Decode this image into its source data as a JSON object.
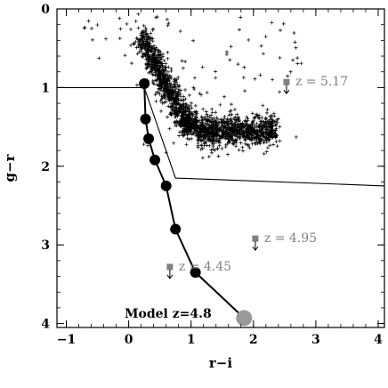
{
  "chart_data": {
    "type": "scatter",
    "title": "",
    "xlabel": "r−i",
    "ylabel": "g−r",
    "xlim": [
      -1.15,
      4.1
    ],
    "ylim": [
      0,
      4.05
    ],
    "y_inverted": true,
    "grid": false,
    "x_ticks": [
      "−1",
      "0",
      "1",
      "2",
      "3",
      "4"
    ],
    "x_tick_values": [
      -1,
      0,
      1,
      2,
      3,
      4
    ],
    "y_ticks": [
      "0",
      "1",
      "2",
      "3",
      "4"
    ],
    "y_tick_values": [
      0,
      1,
      2,
      3,
      4
    ],
    "colors": {
      "points": "#000000",
      "quasar": "#808080",
      "model": "#000000",
      "model_end": "#999999",
      "cut": "#000000"
    },
    "selection_boundary": [
      {
        "x": -1.15,
        "y": 1.0
      },
      {
        "x": 0.25,
        "y": 1.0
      },
      {
        "x": 0.75,
        "y": 2.15
      },
      {
        "x": 4.1,
        "y": 2.25
      }
    ],
    "model_track": {
      "label": "Model z=4.8",
      "points": [
        {
          "x": 0.25,
          "y": 0.95
        },
        {
          "x": 0.27,
          "y": 1.4
        },
        {
          "x": 0.32,
          "y": 1.65
        },
        {
          "x": 0.42,
          "y": 1.92
        },
        {
          "x": 0.6,
          "y": 2.25
        },
        {
          "x": 0.75,
          "y": 2.8
        },
        {
          "x": 1.07,
          "y": 3.35
        },
        {
          "x": 1.85,
          "y": 3.93
        }
      ]
    },
    "quasars": [
      {
        "label": "z = 5.17",
        "x": 2.53,
        "y": 0.93
      },
      {
        "label": "z = 4.95",
        "x": 2.03,
        "y": 2.92
      },
      {
        "label": "z = 4.45",
        "x": 0.66,
        "y": 3.28
      }
    ],
    "stellar_locus": {
      "description_points": [
        {
          "x": 0.2,
          "y": 0.35
        },
        {
          "x": 0.4,
          "y": 0.75
        },
        {
          "x": 0.55,
          "y": 1.05
        },
        {
          "x": 0.75,
          "y": 1.35
        },
        {
          "x": 1.0,
          "y": 1.5
        },
        {
          "x": 1.4,
          "y": 1.6
        },
        {
          "x": 1.8,
          "y": 1.6
        },
        {
          "x": 2.2,
          "y": 1.55
        }
      ]
    }
  }
}
